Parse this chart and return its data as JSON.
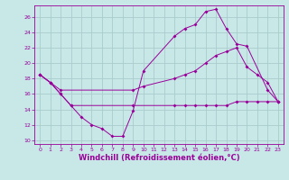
{
  "background_color": "#c8e8e8",
  "grid_color": "#aacccc",
  "line_color": "#990099",
  "marker": "D",
  "marker_size": 2.0,
  "xlabel": "Windchill (Refroidissement éolien,°C)",
  "xlabel_fontsize": 6.0,
  "xlim": [
    -0.5,
    23.5
  ],
  "ylim": [
    9.5,
    27.5
  ],
  "yticks": [
    10,
    12,
    14,
    16,
    18,
    20,
    22,
    24,
    26
  ],
  "xticks": [
    0,
    1,
    2,
    3,
    4,
    5,
    6,
    7,
    8,
    9,
    10,
    11,
    12,
    13,
    14,
    15,
    16,
    17,
    18,
    19,
    20,
    21,
    22,
    23
  ],
  "line1_x": [
    0,
    1,
    2,
    3,
    4,
    5,
    6,
    7,
    8,
    9,
    10,
    13,
    14,
    15,
    16,
    17,
    18,
    19,
    20,
    22,
    23
  ],
  "line1_y": [
    18.5,
    17.5,
    16.0,
    14.5,
    13.0,
    12.0,
    11.5,
    10.5,
    10.5,
    13.8,
    19.0,
    23.5,
    24.5,
    25.0,
    26.7,
    27.0,
    24.5,
    22.5,
    22.2,
    16.5,
    15.0
  ],
  "line2_x": [
    0,
    1,
    2,
    9,
    10,
    13,
    14,
    15,
    16,
    17,
    18,
    19,
    20,
    21,
    22,
    23
  ],
  "line2_y": [
    18.5,
    17.5,
    16.5,
    16.5,
    17.0,
    18.0,
    18.5,
    19.0,
    20.0,
    21.0,
    21.5,
    22.0,
    19.5,
    18.5,
    17.5,
    15.0
  ],
  "line3_x": [
    0,
    1,
    2,
    3,
    9,
    13,
    14,
    15,
    16,
    17,
    18,
    19,
    20,
    21,
    22,
    23
  ],
  "line3_y": [
    18.5,
    17.5,
    16.0,
    14.5,
    14.5,
    14.5,
    14.5,
    14.5,
    14.5,
    14.5,
    14.5,
    15.0,
    15.0,
    15.0,
    15.0,
    15.0
  ]
}
